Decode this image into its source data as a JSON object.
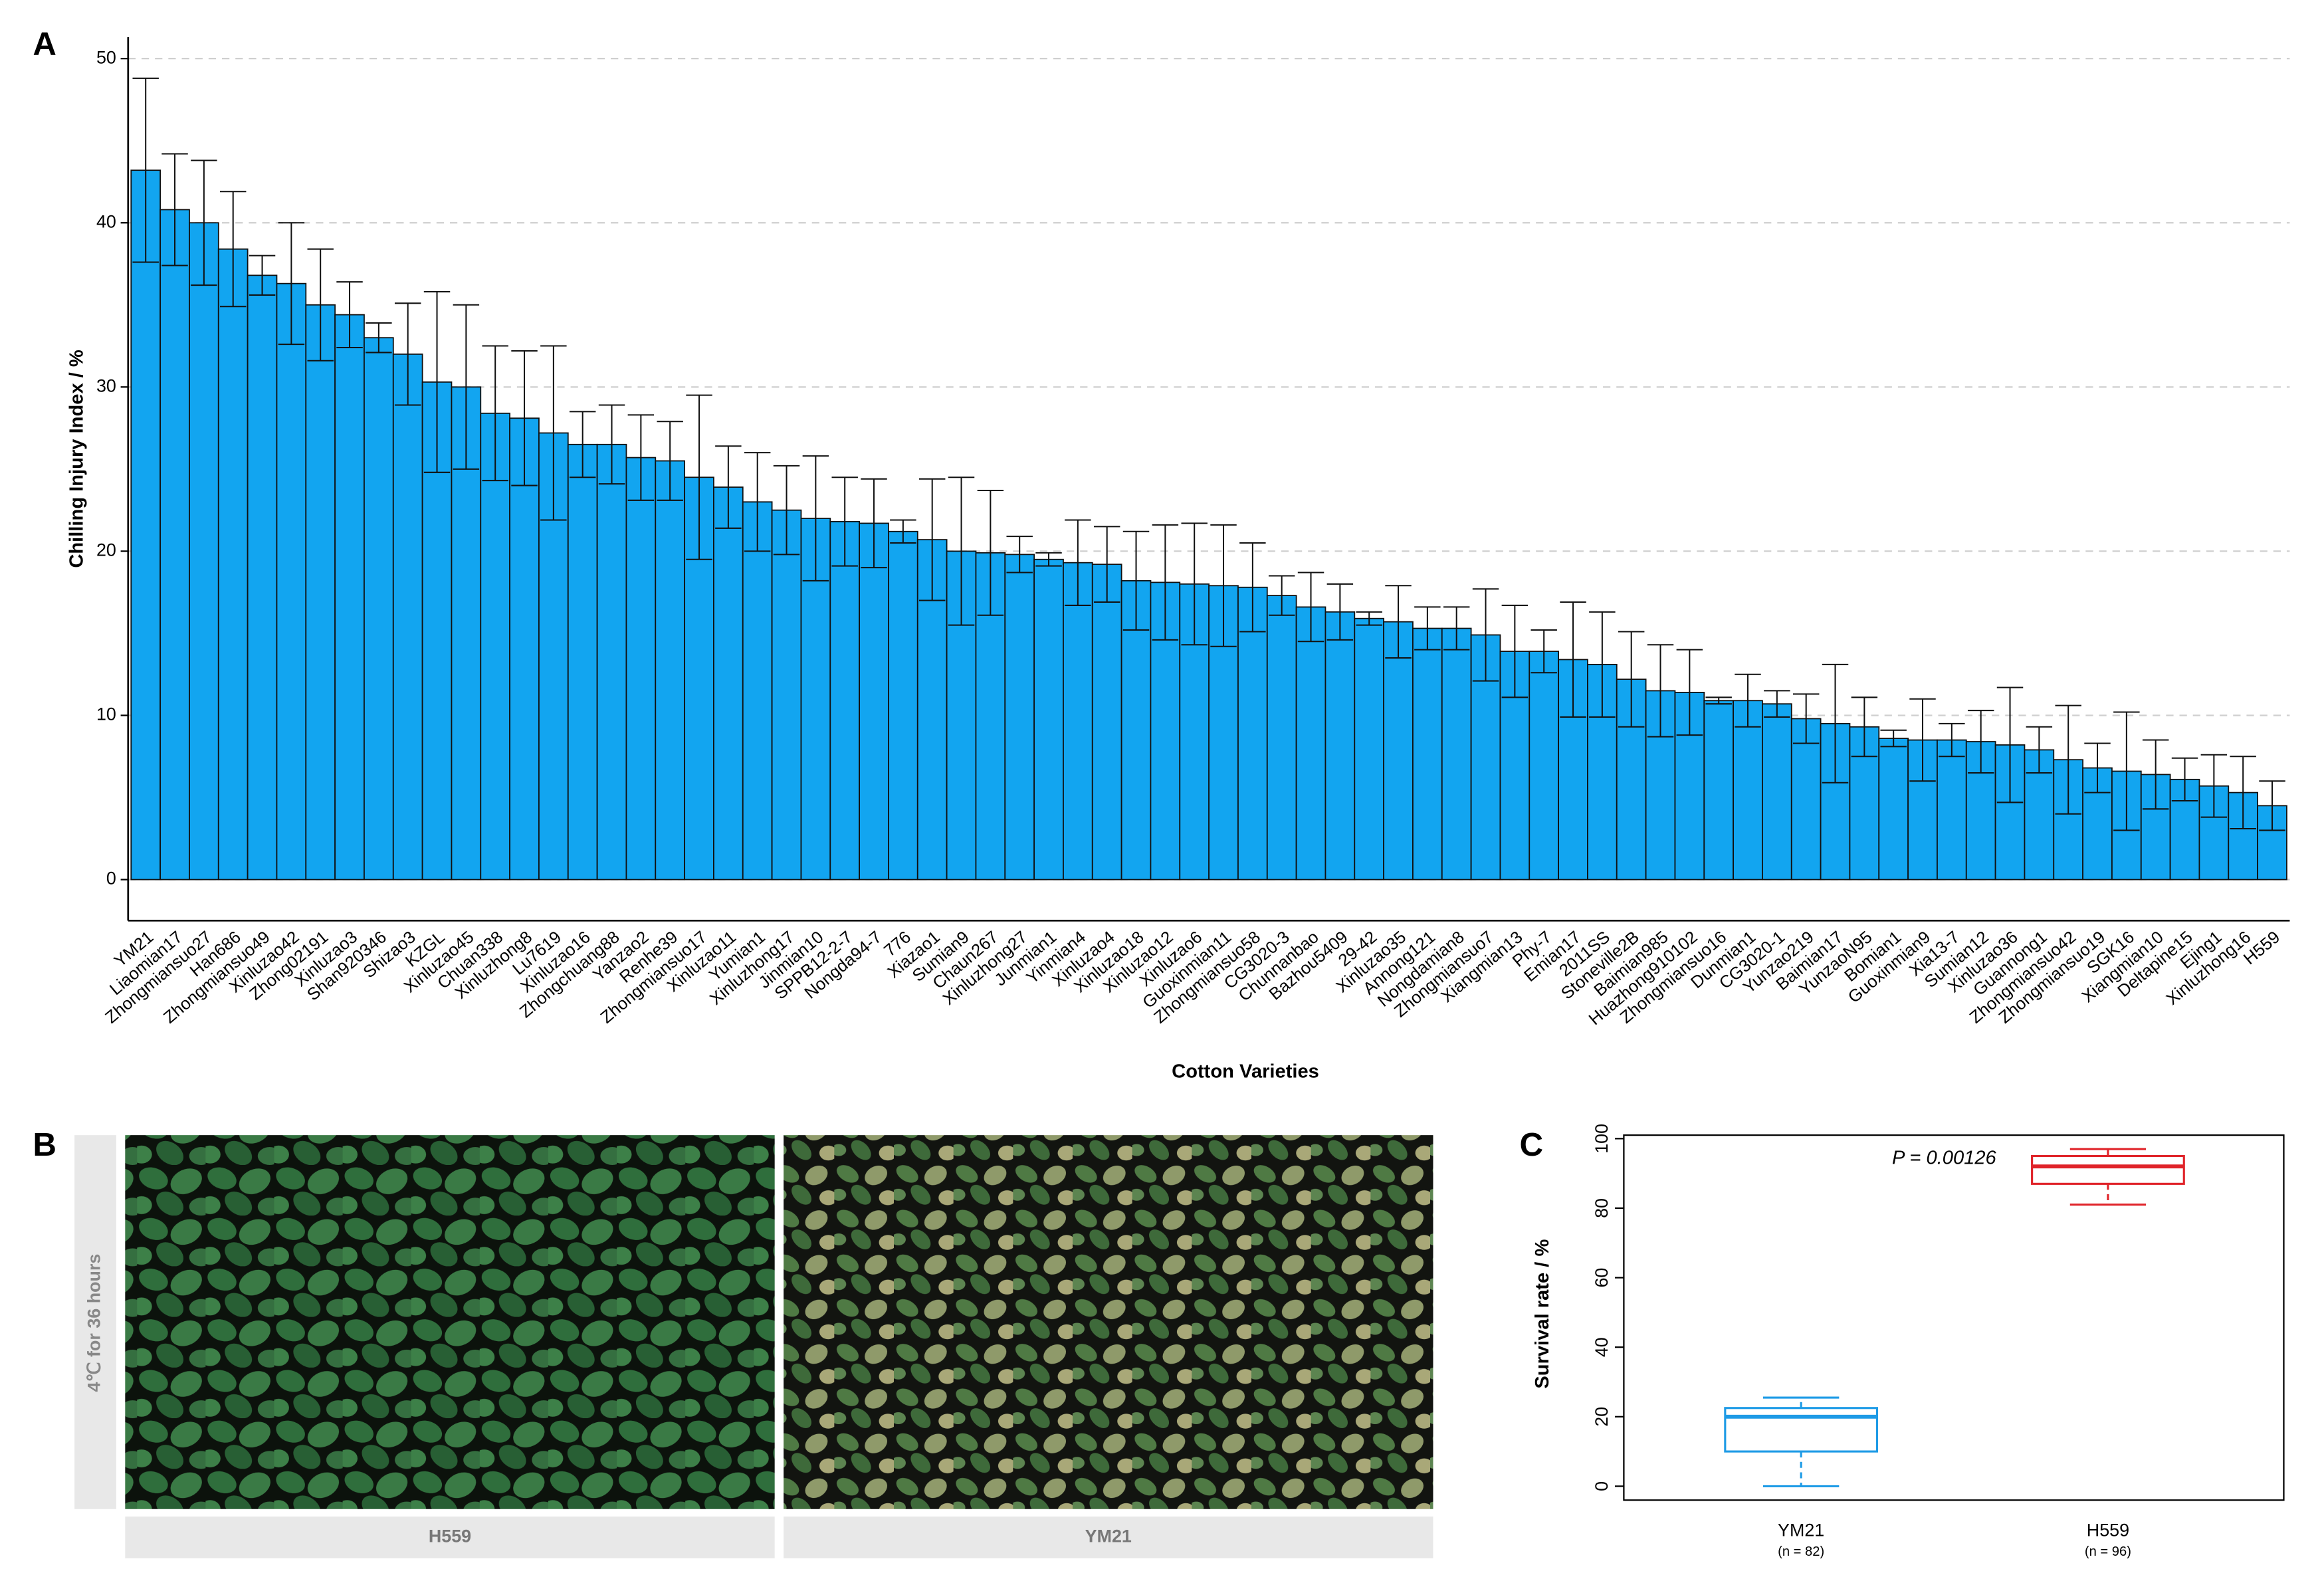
{
  "panel_labels": [
    "A",
    "B",
    "C"
  ],
  "chart_data": [
    {
      "type": "bar",
      "x_label": "Cotton Varieties",
      "y_label": "Chilling Injury Index / %",
      "categories": [
        "YM21",
        "Liaomian17",
        "Zhongmiansuo27",
        "Han686",
        "Zhongmiansuo49",
        "Xinluzao42",
        "Zhong02191",
        "Xinluzao3",
        "Shan920346",
        "Shizao3",
        "KZGL",
        "Xinluzao45",
        "Chuan338",
        "Xinluzhong8",
        "Lu7619",
        "Xinluzao16",
        "Zhongchuang88",
        "Yanzao2",
        "Renhe39",
        "Zhongmiansuo17",
        "Xinluzao11",
        "Yumian1",
        "Xinluzhong17",
        "Jinmian10",
        "SPPB12-2-7",
        "Nongda94-7",
        "776",
        "Xiazao1",
        "Sumian9",
        "Chaun267",
        "Xinluzhong27",
        "Junmian1",
        "Yinmian4",
        "Xinluzao4",
        "Xinluzao18",
        "Xinluzao12",
        "Xinluzao6",
        "Guoxinmian11",
        "Zhongmiansuo58",
        "CG3020-3",
        "Chunnanbao",
        "Bazhou5409",
        "29-42",
        "Xinluzao35",
        "Annong121",
        "Nongdamian8",
        "Zhongmiansuo7",
        "Xiangmian13",
        "Phy-7",
        "Emian17",
        "2011SS",
        "Stoneville2B",
        "Baimian985",
        "Huazhong910102",
        "Zhongmiansuo16",
        "Dunmian1",
        "CG3020-1",
        "Yunzao219",
        "Baimian17",
        "YunzaoN95",
        "Bomian1",
        "Guoxinmian9",
        "Xia13-7",
        "Sumian12",
        "Xinluzao36",
        "Guannong1",
        "Zhongmiansuo42",
        "Zhongmiansuo19",
        "SGK16",
        "Xiangmian10",
        "Deltapine15",
        "Ejing1",
        "Xinluzhong16",
        "H559"
      ],
      "values": [
        43.2,
        40.8,
        40.0,
        38.4,
        36.8,
        36.3,
        35.0,
        34.4,
        33.0,
        32.0,
        30.3,
        30.0,
        28.4,
        28.1,
        27.2,
        26.5,
        26.5,
        25.7,
        25.5,
        24.5,
        23.9,
        23.0,
        22.5,
        22.0,
        21.8,
        21.7,
        21.2,
        20.7,
        20.0,
        19.9,
        19.8,
        19.5,
        19.3,
        19.2,
        18.2,
        18.1,
        18.0,
        17.9,
        17.8,
        17.3,
        16.6,
        16.3,
        15.9,
        15.7,
        15.3,
        15.3,
        14.9,
        13.9,
        13.9,
        13.4,
        13.1,
        12.2,
        11.5,
        11.4,
        10.9,
        10.9,
        10.7,
        9.8,
        9.5,
        9.3,
        8.6,
        8.5,
        8.5,
        8.4,
        8.2,
        7.9,
        7.3,
        6.8,
        6.6,
        6.4,
        6.1,
        5.7,
        5.3,
        4.5
      ],
      "errors": [
        5.6,
        3.4,
        3.8,
        3.5,
        1.2,
        3.7,
        3.4,
        2.0,
        0.9,
        3.1,
        5.5,
        5.0,
        4.1,
        4.1,
        5.3,
        2.0,
        2.4,
        2.6,
        2.4,
        5.0,
        2.5,
        3.0,
        2.7,
        3.8,
        2.7,
        2.7,
        0.7,
        3.7,
        4.5,
        3.8,
        1.1,
        0.4,
        2.6,
        2.3,
        3.0,
        3.5,
        3.7,
        3.7,
        2.7,
        1.2,
        2.1,
        1.7,
        0.4,
        2.2,
        1.3,
        1.3,
        2.8,
        2.8,
        1.3,
        3.5,
        3.2,
        2.9,
        2.8,
        2.6,
        0.2,
        1.6,
        0.8,
        1.5,
        3.6,
        1.8,
        0.5,
        2.5,
        1.0,
        1.9,
        3.5,
        1.4,
        3.3,
        1.5,
        3.6,
        2.1,
        1.3,
        1.9,
        2.2,
        1.5
      ],
      "color": "#12a5f0",
      "ylim": [
        -2.5,
        51.3
      ],
      "yticks": [
        0,
        10,
        20,
        30,
        40,
        50
      ],
      "grid": true
    },
    {
      "type": "box",
      "y_label": "Survival rate / %",
      "categories": [
        "YM21",
        "H559"
      ],
      "n_labels": [
        "(n = 82)",
        "(n = 96)"
      ],
      "min": [
        0,
        81
      ],
      "q1": [
        10,
        87
      ],
      "median": [
        20,
        92
      ],
      "q3": [
        22.5,
        95
      ],
      "max": [
        25.5,
        97
      ],
      "colors": [
        "#1e9be6",
        "#e0242a"
      ],
      "annotation": "P = 0.00126",
      "ylim": [
        -4,
        101
      ],
      "yticks": [
        0,
        20,
        40,
        60,
        80,
        100
      ]
    }
  ],
  "photo_panel": {
    "condition": "4℃ for 36 hours",
    "labels": [
      "H559",
      "YM21"
    ]
  }
}
